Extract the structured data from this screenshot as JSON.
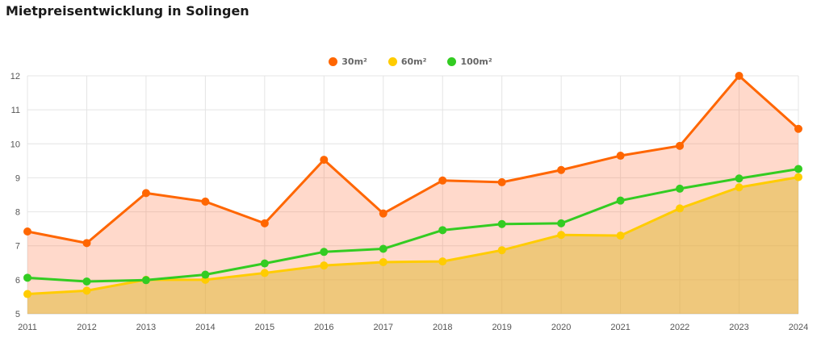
{
  "chart_data": {
    "type": "area",
    "title": "Mietpreisentwicklung in Solingen",
    "x": [
      "2011",
      "2012",
      "2013",
      "2014",
      "2015",
      "2016",
      "2017",
      "2018",
      "2019",
      "2020",
      "2021",
      "2022",
      "2023",
      "2024"
    ],
    "ylim": [
      5,
      12
    ],
    "yticks": [
      "5",
      "6",
      "7",
      "8",
      "9",
      "10",
      "11",
      "12"
    ],
    "grid": true,
    "legend": "top-center",
    "series": [
      {
        "name": "30m²",
        "color": "#ff6600",
        "fill": "rgba(255,120,70,0.28)",
        "values": [
          7.42,
          7.08,
          8.55,
          8.3,
          7.66,
          9.53,
          7.95,
          8.92,
          8.87,
          9.23,
          9.65,
          9.94,
          12.0,
          10.44
        ]
      },
      {
        "name": "60m²",
        "color": "#ffcc00",
        "fill": "rgba(225,185,60,0.55)",
        "values": [
          5.58,
          5.68,
          6.0,
          6.0,
          6.2,
          6.42,
          6.52,
          6.54,
          6.87,
          7.32,
          7.3,
          8.1,
          8.72,
          9.02
        ]
      },
      {
        "name": "100m²",
        "color": "#33cc22",
        "fill": "rgba(200,200,120,0.0)",
        "values": [
          6.06,
          5.95,
          5.99,
          6.15,
          6.48,
          6.82,
          6.91,
          7.46,
          7.64,
          7.66,
          8.33,
          8.68,
          8.98,
          9.26
        ]
      }
    ]
  }
}
